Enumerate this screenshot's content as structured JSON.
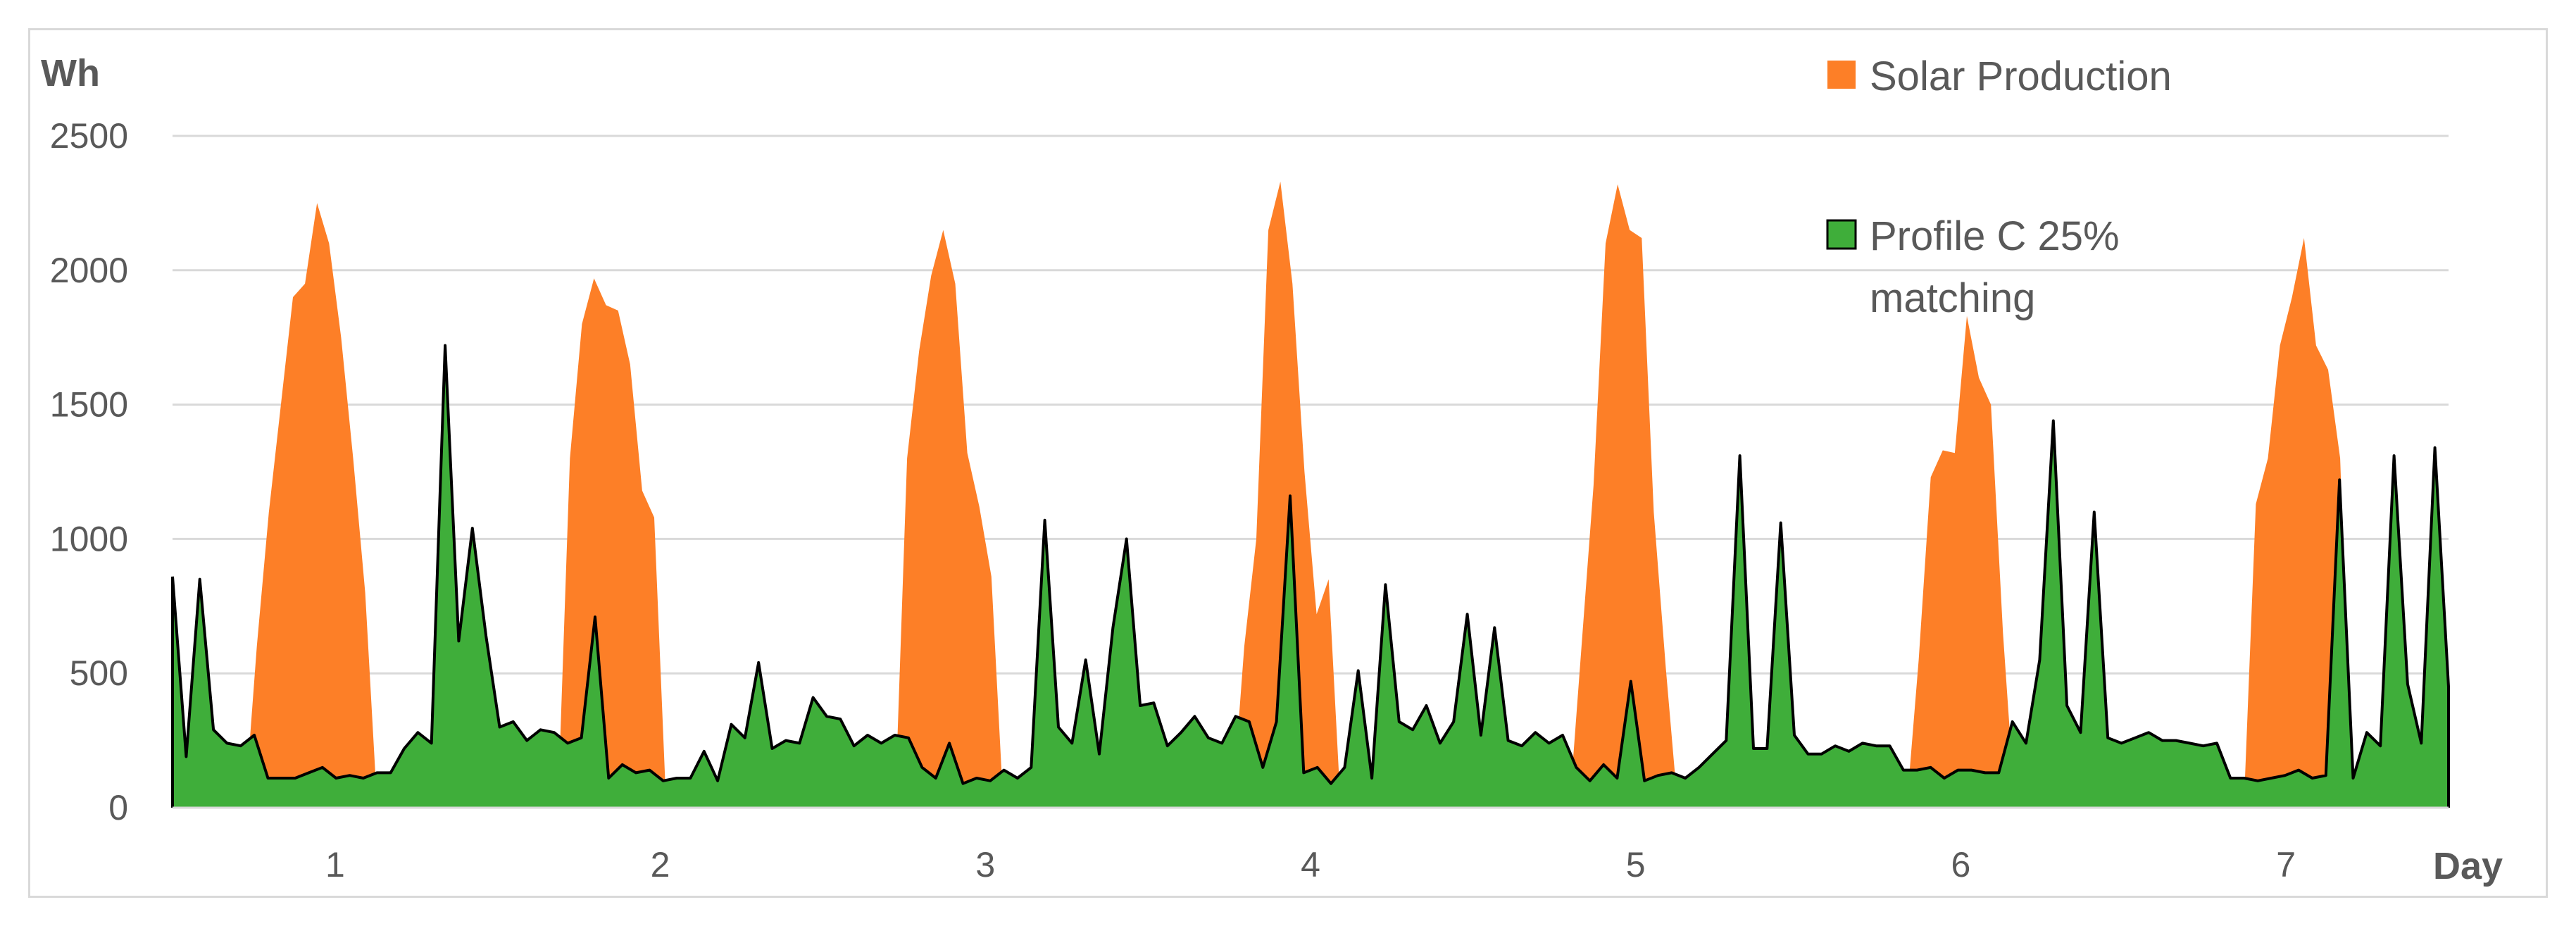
{
  "chart_data": {
    "type": "area",
    "ylabel": "Wh",
    "xlabel": "Day",
    "ylim": [
      0,
      2500
    ],
    "yticks": [
      0,
      500,
      1000,
      1500,
      2000,
      2500
    ],
    "x_tick_labels": [
      "1",
      "2",
      "3",
      "4",
      "5",
      "6",
      "7"
    ],
    "grid": true,
    "legend_position": "top-right",
    "series": [
      {
        "name": "Solar Production",
        "color": "#fd7f27",
        "values": [
          0,
          0,
          0,
          0,
          0,
          0,
          0,
          600,
          1100,
          1500,
          1900,
          1950,
          2250,
          2100,
          1750,
          1300,
          800,
          0,
          0,
          0,
          0,
          0,
          0,
          0,
          0,
          0,
          0,
          0,
          0,
          0,
          0,
          0,
          0,
          1300,
          1800,
          1970,
          1870,
          1850,
          1650,
          1180,
          1080,
          0,
          0,
          0,
          0,
          0,
          0,
          0,
          0,
          0,
          0,
          0,
          0,
          0,
          0,
          0,
          0,
          0,
          0,
          0,
          0,
          1300,
          1700,
          1980,
          2150,
          1950,
          1320,
          1120,
          860,
          0,
          0,
          0,
          0,
          0,
          0,
          0,
          0,
          0,
          0,
          0,
          0,
          0,
          0,
          0,
          0,
          0,
          0,
          0,
          0,
          600,
          1000,
          2150,
          2330,
          1950,
          1250,
          720,
          850,
          0,
          0,
          0,
          0,
          0,
          0,
          0,
          0,
          0,
          0,
          0,
          0,
          0,
          0,
          0,
          0,
          0,
          0,
          0,
          0,
          600,
          1200,
          2100,
          2320,
          2150,
          2120,
          1100,
          520,
          0,
          0,
          0,
          0,
          0,
          0,
          0,
          0,
          0,
          0,
          0,
          0,
          0,
          0,
          0,
          0,
          0,
          0,
          0,
          0,
          550,
          1230,
          1330,
          1320,
          1830,
          1600,
          1500,
          650,
          0,
          0,
          0,
          0,
          0,
          0,
          0,
          0,
          0,
          0,
          0,
          0,
          0,
          0,
          0,
          0,
          0,
          0,
          0,
          0,
          1130,
          1300,
          1720,
          1900,
          2120,
          1720,
          1630,
          1300,
          0,
          0,
          0,
          0,
          0,
          0,
          0,
          0,
          0
        ]
      },
      {
        "name": "Profile C 25% matching",
        "color": "#3fae3a",
        "values": [
          860,
          190,
          850,
          290,
          240,
          230,
          270,
          110,
          110,
          110,
          130,
          150,
          110,
          120,
          110,
          130,
          130,
          220,
          280,
          240,
          1720,
          620,
          1040,
          640,
          300,
          320,
          250,
          290,
          280,
          240,
          260,
          710,
          110,
          160,
          130,
          140,
          100,
          110,
          110,
          210,
          100,
          310,
          260,
          540,
          220,
          250,
          240,
          410,
          340,
          330,
          230,
          270,
          240,
          270,
          260,
          150,
          110,
          240,
          90,
          110,
          100,
          140,
          110,
          150,
          1070,
          300,
          240,
          550,
          200,
          670,
          1000,
          380,
          390,
          230,
          280,
          340,
          260,
          240,
          340,
          320,
          150,
          320,
          1160,
          130,
          150,
          90,
          150,
          510,
          110,
          830,
          320,
          290,
          380,
          240,
          320,
          720,
          270,
          670,
          250,
          230,
          280,
          240,
          270,
          150,
          100,
          160,
          110,
          470,
          100,
          120,
          130,
          110,
          150,
          200,
          250,
          1310,
          220,
          220,
          1060,
          270,
          200,
          200,
          230,
          210,
          240,
          230,
          230,
          140,
          140,
          150,
          110,
          140,
          140,
          130,
          130,
          320,
          240,
          550,
          1440,
          380,
          280,
          1100,
          260,
          240,
          260,
          280,
          250,
          250,
          240,
          230,
          240,
          110,
          110,
          100,
          110,
          120,
          140,
          110,
          120,
          1220,
          110,
          280,
          230,
          1310,
          460,
          240,
          1340,
          450
        ]
      }
    ]
  }
}
